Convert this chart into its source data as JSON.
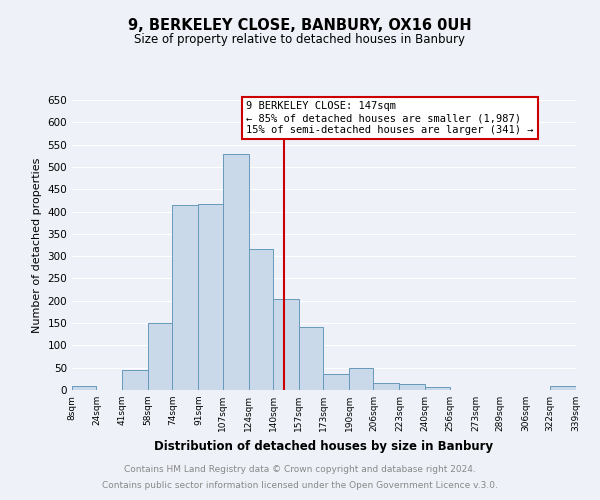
{
  "title": "9, BERKELEY CLOSE, BANBURY, OX16 0UH",
  "subtitle": "Size of property relative to detached houses in Banbury",
  "xlabel": "Distribution of detached houses by size in Banbury",
  "ylabel": "Number of detached properties",
  "bar_color": "#c9d9ea",
  "bar_edge_color": "#6699bb",
  "background_color": "#eef2f8",
  "plot_bg_color": "#eef2f8",
  "grid_color": "#ffffff",
  "vline_x": 147,
  "vline_color": "#cc0000",
  "bins": [
    8,
    24,
    41,
    58,
    74,
    91,
    107,
    124,
    140,
    157,
    173,
    190,
    206,
    223,
    240,
    256,
    273,
    289,
    306,
    322,
    339
  ],
  "bin_labels": [
    "8sqm",
    "24sqm",
    "41sqm",
    "58sqm",
    "74sqm",
    "91sqm",
    "107sqm",
    "124sqm",
    "140sqm",
    "157sqm",
    "173sqm",
    "190sqm",
    "206sqm",
    "223sqm",
    "240sqm",
    "256sqm",
    "273sqm",
    "289sqm",
    "306sqm",
    "322sqm",
    "339sqm"
  ],
  "heights": [
    8,
    0,
    45,
    150,
    415,
    418,
    530,
    315,
    205,
    142,
    35,
    50,
    16,
    14,
    6,
    1,
    0,
    0,
    0,
    8
  ],
  "ylim": [
    0,
    650
  ],
  "yticks": [
    0,
    50,
    100,
    150,
    200,
    250,
    300,
    350,
    400,
    450,
    500,
    550,
    600,
    650
  ],
  "annotation_title": "9 BERKELEY CLOSE: 147sqm",
  "annotation_line1": "← 85% of detached houses are smaller (1,987)",
  "annotation_line2": "15% of semi-detached houses are larger (341) →",
  "annotation_box_color": "#ffffff",
  "annotation_box_edge": "#cc0000",
  "footer1": "Contains HM Land Registry data © Crown copyright and database right 2024.",
  "footer2": "Contains public sector information licensed under the Open Government Licence v.3.0.",
  "footer_color": "#888888",
  "footer_bg": "#ffffff"
}
